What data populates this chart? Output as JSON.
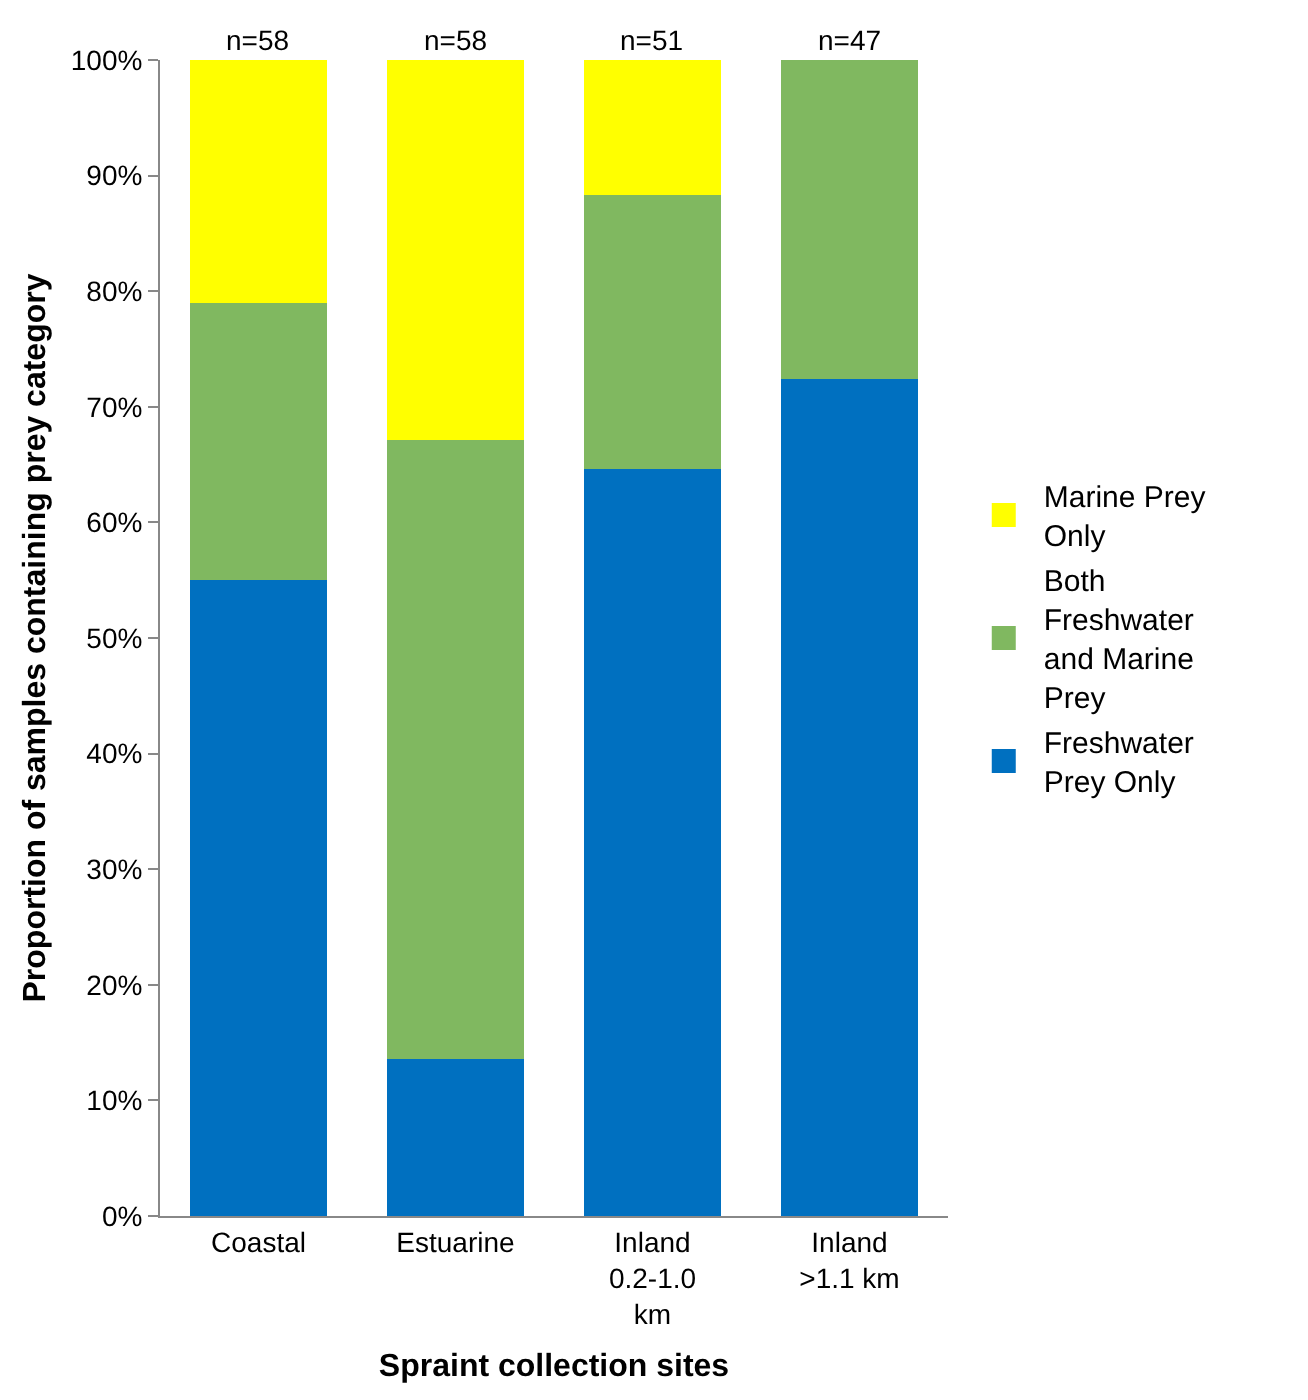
{
  "chart_data": {
    "type": "bar",
    "stacked": true,
    "xlabel": "Spraint collection sites",
    "ylabel": "Proportion of samples containing prey category",
    "categories": [
      "Coastal",
      "Estuarine",
      "Inland 0.2-1.0 km",
      "Inland >1.1 km"
    ],
    "series": [
      {
        "name": "Freshwater Prey Only",
        "color": "#0070c0",
        "values": [
          55,
          13.6,
          64.6,
          72.4
        ]
      },
      {
        "name": "Both Freshwater and Marine Prey",
        "color": "#80b860",
        "values": [
          24,
          53.5,
          23.7,
          27.6
        ]
      },
      {
        "name": "Marine Prey Only",
        "color": "#ffff00",
        "values": [
          21,
          32.9,
          11.7,
          0
        ]
      }
    ],
    "ylim": [
      0,
      100
    ],
    "yticks": [
      {
        "value": 0,
        "label": "0%"
      },
      {
        "value": 10,
        "label": "10%"
      },
      {
        "value": 20,
        "label": "20%"
      },
      {
        "value": 30,
        "label": "30%"
      },
      {
        "value": 40,
        "label": "40%"
      },
      {
        "value": 50,
        "label": "50%"
      },
      {
        "value": 60,
        "label": "60%"
      },
      {
        "value": 70,
        "label": "70%"
      },
      {
        "value": 80,
        "label": "80%"
      },
      {
        "value": 90,
        "label": "90%"
      },
      {
        "value": 100,
        "label": "100%"
      }
    ],
    "annotations": [
      {
        "text": "n=58",
        "x": "Coastal",
        "y": 100
      },
      {
        "text": "n=58",
        "x": "Estuarine",
        "y": 100
      },
      {
        "text": "n=51",
        "x": "Inland 0.2-1.0 km",
        "y": 100
      },
      {
        "text": "n=47",
        "x": "Inland >1.1 km",
        "y": 100
      }
    ],
    "grid": false,
    "legend": "right"
  }
}
